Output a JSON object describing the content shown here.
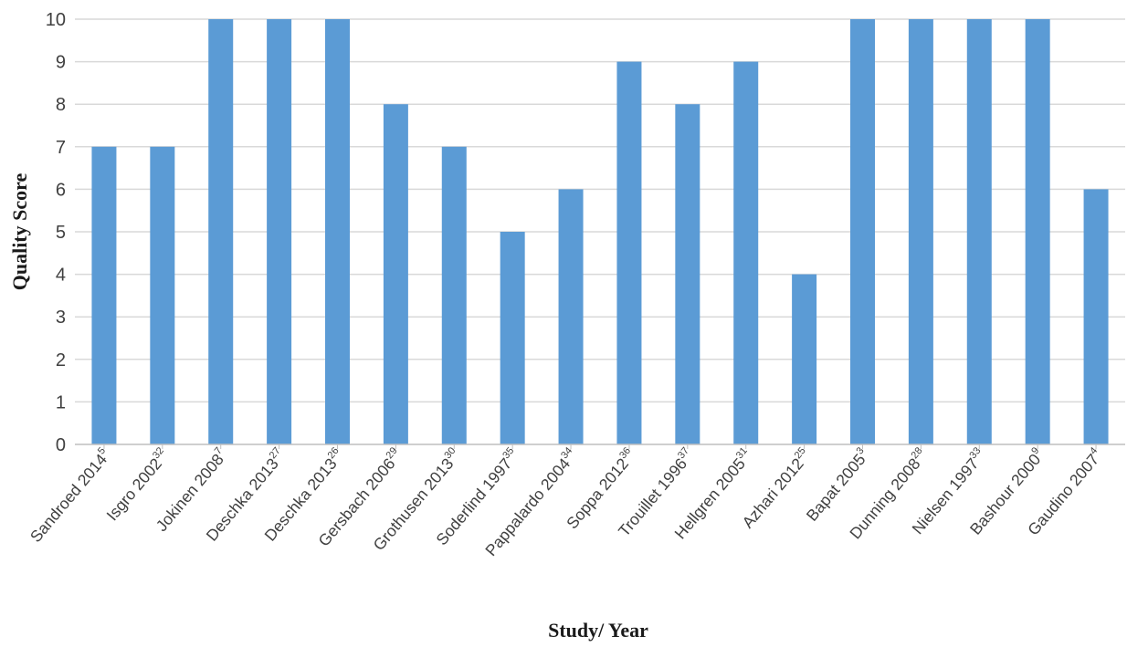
{
  "chart_data": {
    "type": "bar",
    "title": "",
    "xlabel": "Study/ Year",
    "ylabel": "Quality Score",
    "ylim": [
      0,
      10
    ],
    "yticks": [
      0,
      1,
      2,
      3,
      4,
      5,
      6,
      7,
      8,
      9,
      10
    ],
    "grid": true,
    "legend": "none",
    "bar_color": "#5b9bd5",
    "categories": [
      {
        "name": "Sandroed 2014",
        "ref": "5"
      },
      {
        "name": "Isgro 2002",
        "ref": "32"
      },
      {
        "name": "Jokinen 2008",
        "ref": "7"
      },
      {
        "name": "Deschka 2013",
        "ref": "27"
      },
      {
        "name": "Deschka 2013",
        "ref": "26"
      },
      {
        "name": "Gersbach 2006",
        "ref": "29"
      },
      {
        "name": "Grothusen 2013",
        "ref": "30"
      },
      {
        "name": "Soderlind 1997",
        "ref": "35"
      },
      {
        "name": "Pappalardo 2004",
        "ref": "34"
      },
      {
        "name": "Soppa 2012",
        "ref": "36"
      },
      {
        "name": "Trouillet 1996",
        "ref": "37"
      },
      {
        "name": "Hellgren 2005",
        "ref": "31"
      },
      {
        "name": "Azhari 2012",
        "ref": "25"
      },
      {
        "name": "Bapat 2005",
        "ref": "3"
      },
      {
        "name": "Dunning 2008",
        "ref": "28"
      },
      {
        "name": "Nielsen 1997",
        "ref": "33"
      },
      {
        "name": "Bashour 2000",
        "ref": "9"
      },
      {
        "name": "Gaudino 2007",
        "ref": "4"
      }
    ],
    "values": [
      7,
      7,
      10,
      10,
      10,
      8,
      7,
      5,
      6,
      9,
      8,
      9,
      4,
      10,
      10,
      10,
      10,
      6
    ]
  }
}
